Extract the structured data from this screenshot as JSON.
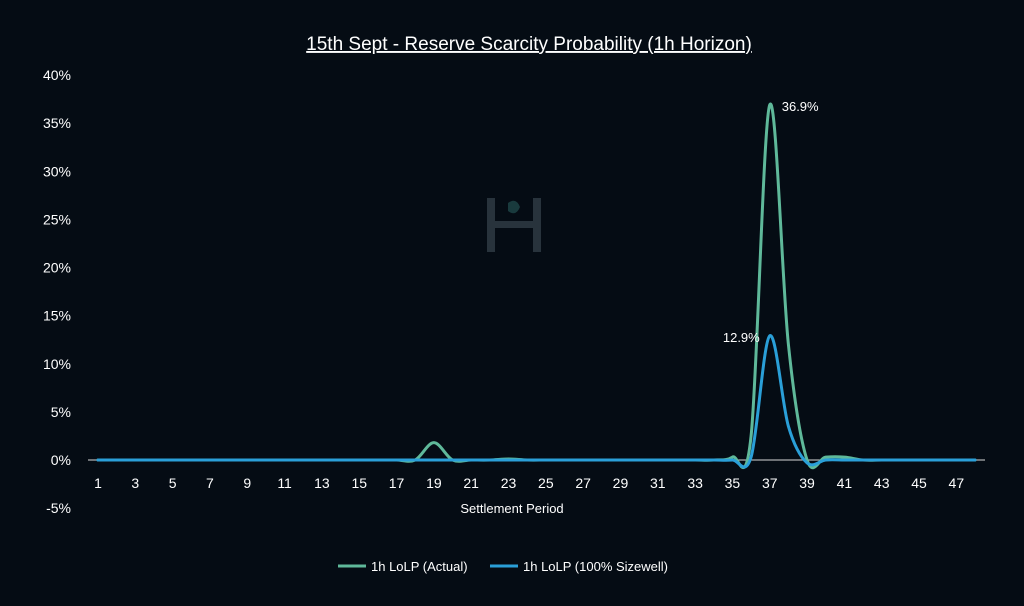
{
  "chart_data": {
    "type": "line",
    "title": "15th Sept - Reserve Scarcity Probability (1h Horizon)",
    "xlabel": "Settlement Period",
    "ylabel": "",
    "x": [
      1,
      2,
      3,
      4,
      5,
      6,
      7,
      8,
      9,
      10,
      11,
      12,
      13,
      14,
      15,
      16,
      17,
      18,
      19,
      20,
      21,
      22,
      23,
      24,
      25,
      26,
      27,
      28,
      29,
      30,
      31,
      32,
      33,
      34,
      35,
      36,
      37,
      38,
      39,
      40,
      41,
      42,
      43,
      44,
      45,
      46,
      47,
      48
    ],
    "x_tick_labels": [
      "1",
      "3",
      "5",
      "7",
      "9",
      "11",
      "13",
      "15",
      "17",
      "19",
      "21",
      "23",
      "25",
      "27",
      "29",
      "31",
      "33",
      "35",
      "37",
      "39",
      "41",
      "43",
      "45",
      "47"
    ],
    "y_tick_labels": [
      "-5%",
      "0%",
      "5%",
      "10%",
      "15%",
      "20%",
      "25%",
      "30%",
      "35%",
      "40%"
    ],
    "ylim": [
      -5,
      40
    ],
    "grid": false,
    "legend_position": "bottom",
    "series": [
      {
        "name": "1h LoLP (Actual)",
        "color": "#5fb99a",
        "values": [
          0,
          0,
          0,
          0,
          0,
          0,
          0,
          0,
          0,
          0,
          0,
          0,
          0,
          0,
          0,
          0,
          0,
          0,
          1.8,
          0,
          0,
          0,
          0.1,
          0,
          0,
          0,
          0,
          0,
          0,
          0,
          0,
          0,
          0,
          0,
          0.3,
          2.5,
          36.9,
          12.0,
          0,
          0.3,
          0.3,
          0,
          0,
          0,
          0,
          0,
          0,
          0
        ]
      },
      {
        "name": "1h LoLP (100% Sizewell)",
        "color": "#2a9fd8",
        "values": [
          0,
          0,
          0,
          0,
          0,
          0,
          0,
          0,
          0,
          0,
          0,
          0,
          0,
          0,
          0,
          0,
          0,
          0,
          0,
          0,
          0,
          0,
          0,
          0,
          0,
          0,
          0,
          0,
          0,
          0,
          0,
          0,
          0,
          0,
          0,
          0.3,
          12.9,
          3.5,
          -0.3,
          0,
          0,
          0,
          0,
          0,
          0,
          0,
          0,
          0
        ]
      }
    ],
    "annotations": [
      {
        "series": 0,
        "x": 37,
        "value": 36.9,
        "text": "36.9%"
      },
      {
        "series": 1,
        "x": 37,
        "value": 12.9,
        "text": "12.9%"
      }
    ]
  }
}
